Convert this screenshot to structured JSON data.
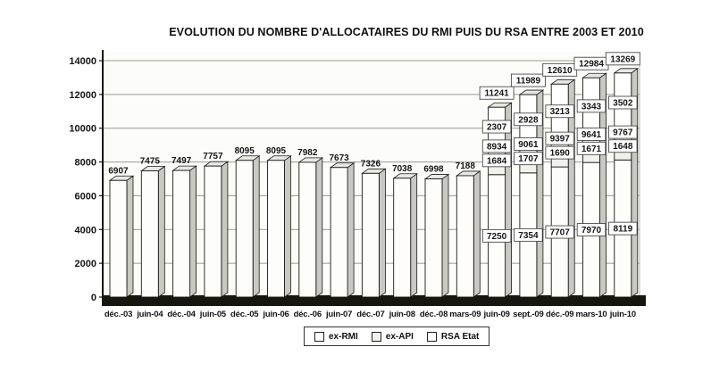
{
  "title": "EVOLUTION DU NOMBRE D'ALLOCATAIRES DU RMI PUIS DU RSA ENTRE 2003 ET 2010",
  "chart_data": {
    "type": "bar",
    "stacked": true,
    "title": "EVOLUTION DU NOMBRE D'ALLOCATAIRES DU RMI PUIS DU RSA ENTRE 2003 ET 2010",
    "categories": [
      "déc.-03",
      "juin-04",
      "déc.-04",
      "juin-05",
      "déc.-05",
      "juin-06",
      "déc.-06",
      "juin-07",
      "déc.-07",
      "juin-08",
      "déc.-08",
      "mars-09",
      "juin-09",
      "sept.-09",
      "déc.-09",
      "mars-10",
      "juin-10"
    ],
    "series": [
      {
        "name": "ex-RMI",
        "values": [
          6907,
          7475,
          7497,
          7757,
          8095,
          8095,
          7982,
          7673,
          7326,
          7038,
          6998,
          7188,
          7250,
          7354,
          7707,
          7970,
          8119
        ]
      },
      {
        "name": "ex-API",
        "values": [
          0,
          0,
          0,
          0,
          0,
          0,
          0,
          0,
          0,
          0,
          0,
          0,
          1684,
          1707,
          1690,
          1671,
          1648
        ]
      },
      {
        "name": "RSA Etat",
        "values": [
          0,
          0,
          0,
          0,
          0,
          0,
          0,
          0,
          0,
          0,
          0,
          0,
          2307,
          2928,
          3213,
          3343,
          3502
        ]
      }
    ],
    "totals": [
      6907,
      7475,
      7497,
      7757,
      8095,
      8095,
      7982,
      7673,
      7326,
      7038,
      6998,
      7188,
      11241,
      11989,
      12610,
      12984,
      13269
    ],
    "cumulative_labels": [
      8934,
      9061,
      9397,
      9641,
      9767
    ],
    "yticks": [
      0,
      2000,
      4000,
      6000,
      8000,
      10000,
      12000,
      14000
    ],
    "ylim": [
      0,
      14000
    ],
    "grid": true,
    "legend": [
      "ex-RMI",
      "ex-API",
      "RSA Etat"
    ],
    "legend_position": "bottom",
    "colors": [
      "#fdfdf9",
      "#f2f2ec",
      "#ffffff"
    ],
    "axis_color": "#151515",
    "grid_color": "#9a9a94",
    "floor_color": "#16160f"
  }
}
